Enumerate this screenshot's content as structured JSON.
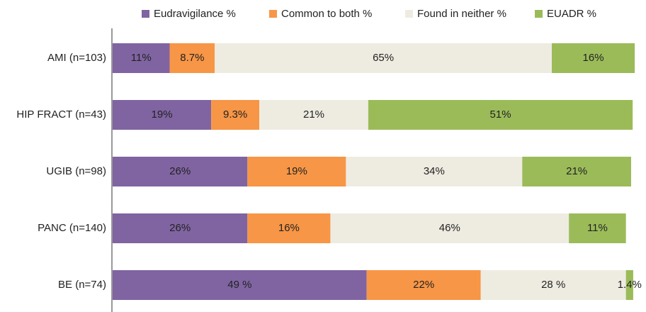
{
  "chart_data": {
    "type": "stacked_bar_horizontal",
    "categories": [
      "AMI (n=103)",
      "HIP FRACT (n=43)",
      "UGIB (n=98)",
      "PANC (n=140)",
      "BE (n=74)"
    ],
    "series": [
      {
        "name": "Eudravigilance %",
        "color": "#8064a2",
        "values": [
          11,
          19,
          26,
          26,
          49
        ],
        "value_labels": [
          "11%",
          "19%",
          "26%",
          "26%",
          "49 %"
        ]
      },
      {
        "name": "Common to both %",
        "color": "#f79646",
        "values": [
          8.7,
          9.3,
          19,
          16,
          22
        ],
        "value_labels": [
          "8.7%",
          "9.3%",
          "19%",
          "16%",
          "22%"
        ]
      },
      {
        "name": "Found in neither %",
        "color": "#eeece1",
        "values": [
          65,
          21,
          34,
          46,
          28
        ],
        "value_labels": [
          "65%",
          "21%",
          "34%",
          "46%",
          "28 %"
        ]
      },
      {
        "name": "EUADR %",
        "color": "#9bbb59",
        "values": [
          16,
          51,
          21,
          11,
          1.4
        ],
        "value_labels": [
          "16%",
          "51%",
          "21%",
          "11%",
          "1.4%"
        ]
      }
    ],
    "legend": "top"
  }
}
